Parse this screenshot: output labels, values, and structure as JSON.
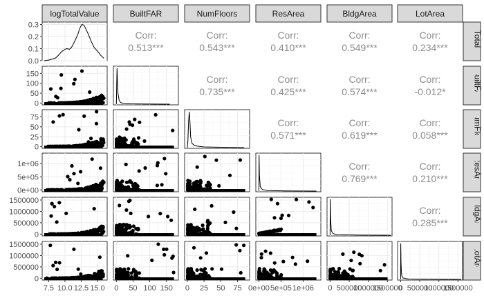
{
  "chart_data": {
    "type": "scatter",
    "layout": "pairs-matrix",
    "variables": [
      "logTotalValue",
      "BuiltFAR",
      "NumFloors",
      "ResArea",
      "BldgArea",
      "LotArea"
    ],
    "strip_labels_top": [
      "logTotalValue",
      "BuiltFAR",
      "NumFloors",
      "ResArea",
      "BldgArea",
      "LotArea"
    ],
    "strip_labels_right": [
      "logTotalValu",
      "BuiltFAR",
      "NumFloors",
      "ResArea",
      "BldgArea",
      "LotArea"
    ],
    "x_tick_labels": [
      [
        "7.5",
        "10.0",
        "12.5",
        "15.0"
      ],
      [
        "0",
        "50",
        "100",
        "150"
      ],
      [
        "0",
        "25",
        "50",
        "75"
      ],
      [
        "0e+00",
        "5e+05",
        "1e+06"
      ],
      [
        "0",
        "500000",
        "1000000",
        "1500000"
      ],
      [
        "0",
        "500000",
        "1000000",
        "1500000"
      ]
    ],
    "x_tick_values": [
      [
        7.5,
        10.0,
        12.5,
        15.0
      ],
      [
        0,
        50,
        100,
        150
      ],
      [
        0,
        25,
        50,
        75
      ],
      [
        0,
        500000,
        1000000
      ],
      [
        0,
        500000,
        1000000,
        1500000
      ],
      [
        0,
        500000,
        1000000,
        1500000
      ]
    ],
    "x_ranges": [
      [
        6.5,
        16.5
      ],
      [
        -9,
        186
      ],
      [
        -4,
        93
      ],
      [
        -70000,
        1400000
      ],
      [
        -80000,
        1620000
      ],
      [
        -80000,
        1620000
      ]
    ],
    "y_tick_labels": [
      [
        "0.0",
        "0.1",
        "0.2",
        "0.3"
      ],
      [
        "0",
        "50",
        "100",
        "150"
      ],
      [
        "0",
        "25",
        "50",
        "75"
      ],
      [
        "0e+00",
        "5e+05",
        "1e+06"
      ],
      [
        "0",
        "500000",
        "1000000",
        "1500000"
      ],
      [
        "0",
        "500000",
        "1000000",
        "1500000"
      ]
    ],
    "y_tick_values": [
      [
        0.0,
        0.1,
        0.2,
        0.3
      ],
      [
        0,
        50,
        100,
        150
      ],
      [
        0,
        25,
        50,
        75
      ],
      [
        0,
        500000,
        1000000
      ],
      [
        0,
        500000,
        1000000,
        1500000
      ],
      [
        0,
        500000,
        1000000,
        1500000
      ]
    ],
    "y_ranges": [
      [
        0,
        0.32
      ],
      [
        -9,
        186
      ],
      [
        -4,
        93
      ],
      [
        -70000,
        1400000
      ],
      [
        -80000,
        1620000
      ],
      [
        -80000,
        1620000
      ]
    ],
    "correlations": [
      {
        "row": 0,
        "col": 1,
        "label": "Corr:",
        "value": "0.513***"
      },
      {
        "row": 0,
        "col": 2,
        "label": "Corr:",
        "value": "0.543***"
      },
      {
        "row": 0,
        "col": 3,
        "label": "Corr:",
        "value": "0.410***"
      },
      {
        "row": 0,
        "col": 4,
        "label": "Corr:",
        "value": "0.549***"
      },
      {
        "row": 0,
        "col": 5,
        "label": "Corr:",
        "value": "0.234***"
      },
      {
        "row": 1,
        "col": 2,
        "label": "Corr:",
        "value": "0.735***"
      },
      {
        "row": 1,
        "col": 3,
        "label": "Corr:",
        "value": "0.425***"
      },
      {
        "row": 1,
        "col": 4,
        "label": "Corr:",
        "value": "0.574***"
      },
      {
        "row": 1,
        "col": 5,
        "label": "Corr:",
        "value": "-0.012*"
      },
      {
        "row": 2,
        "col": 3,
        "label": "Corr:",
        "value": "0.571***"
      },
      {
        "row": 2,
        "col": 4,
        "label": "Corr:",
        "value": "0.619***"
      },
      {
        "row": 2,
        "col": 5,
        "label": "Corr:",
        "value": "0.058***"
      },
      {
        "row": 3,
        "col": 4,
        "label": "Corr:",
        "value": "0.769***"
      },
      {
        "row": 3,
        "col": 5,
        "label": "Corr:",
        "value": "0.210***"
      },
      {
        "row": 4,
        "col": 5,
        "label": "Corr:",
        "value": "0.285***"
      }
    ],
    "densities": {
      "logTotalValue": [
        [
          6.8,
          0.0
        ],
        [
          7.5,
          0.005
        ],
        [
          8.5,
          0.02
        ],
        [
          9.0,
          0.045
        ],
        [
          9.5,
          0.075
        ],
        [
          10.0,
          0.095
        ],
        [
          10.3,
          0.1
        ],
        [
          10.7,
          0.095
        ],
        [
          11.0,
          0.11
        ],
        [
          11.5,
          0.16
        ],
        [
          12.0,
          0.22
        ],
        [
          12.3,
          0.27
        ],
        [
          12.6,
          0.3
        ],
        [
          12.9,
          0.295
        ],
        [
          13.2,
          0.265
        ],
        [
          13.6,
          0.22
        ],
        [
          14.0,
          0.165
        ],
        [
          14.5,
          0.11
        ],
        [
          15.0,
          0.08
        ],
        [
          15.5,
          0.045
        ],
        [
          16.0,
          0.02
        ]
      ],
      "BuiltFAR": [
        [
          0,
          0
        ],
        [
          1,
          0.55
        ],
        [
          2,
          1.0
        ],
        [
          3,
          0.65
        ],
        [
          5,
          0.3
        ],
        [
          8,
          0.12
        ],
        [
          12,
          0.05
        ],
        [
          20,
          0.02
        ],
        [
          40,
          0.01
        ],
        [
          80,
          0.005
        ],
        [
          160,
          0.0
        ]
      ],
      "NumFloors": [
        [
          0,
          0
        ],
        [
          1,
          0.2
        ],
        [
          2,
          0.75
        ],
        [
          3,
          1.0
        ],
        [
          4,
          0.7
        ],
        [
          5,
          0.3
        ],
        [
          7,
          0.12
        ],
        [
          10,
          0.07
        ],
        [
          15,
          0.04
        ],
        [
          25,
          0.02
        ],
        [
          50,
          0.01
        ],
        [
          85,
          0.0
        ]
      ],
      "ResArea": [
        [
          0,
          0
        ],
        [
          4000,
          1.0
        ],
        [
          12000,
          0.45
        ],
        [
          30000,
          0.12
        ],
        [
          80000,
          0.04
        ],
        [
          200000,
          0.015
        ],
        [
          600000,
          0.005
        ],
        [
          1300000,
          0.0
        ]
      ],
      "BldgArea": [
        [
          0,
          0
        ],
        [
          4000,
          1.0
        ],
        [
          12000,
          0.5
        ],
        [
          30000,
          0.13
        ],
        [
          80000,
          0.045
        ],
        [
          200000,
          0.015
        ],
        [
          700000,
          0.005
        ],
        [
          1580000,
          0.0
        ]
      ],
      "LotArea": [
        [
          0,
          0
        ],
        [
          3000,
          1.0
        ],
        [
          10000,
          0.45
        ],
        [
          25000,
          0.12
        ],
        [
          60000,
          0.04
        ],
        [
          200000,
          0.01
        ],
        [
          800000,
          0.003
        ],
        [
          1580000,
          0.0
        ]
      ]
    },
    "grid": true,
    "legend": "none",
    "title": "",
    "xlabel": "",
    "ylabel": ""
  }
}
